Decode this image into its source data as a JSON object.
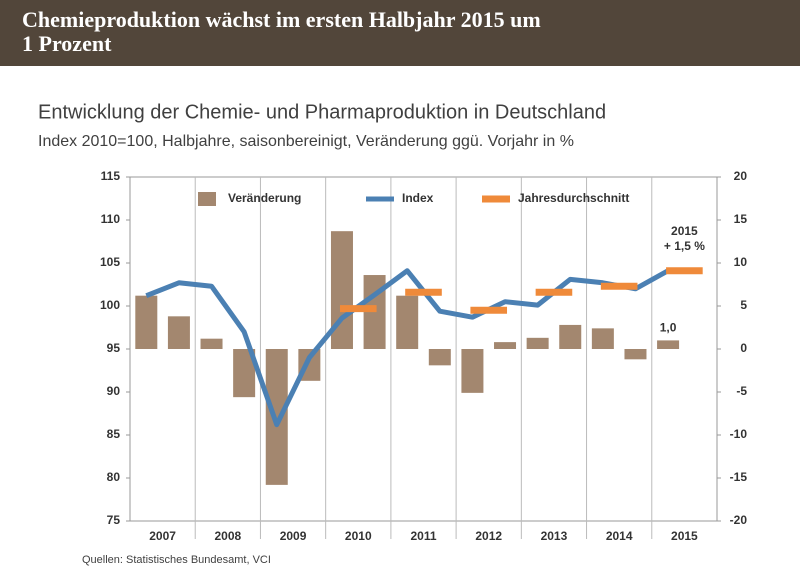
{
  "header": {
    "title_lines": [
      "Chemieproduktion wächst im ersten Halbjahr 2015 um",
      "1 Prozent"
    ]
  },
  "chart_data": {
    "type": "bar-line",
    "title": "Entwicklung der Chemie- und Pharmaproduktion in Deutschland",
    "subtitle": "Index 2010=100, Halbjahre, saisonbereinigt, Veränderung ggü. Vorjahr in %",
    "categories": [
      "2007",
      null,
      "2008",
      null,
      "2009",
      null,
      "2010",
      null,
      "2011",
      null,
      "2012",
      null,
      "2013",
      null,
      "2014",
      null,
      "2015",
      null
    ],
    "series": [
      {
        "name": "Veränderung",
        "type": "bar",
        "axis": "y2",
        "color": "#a3876f",
        "values": [
          6.2,
          3.8,
          1.2,
          -5.6,
          -15.8,
          -3.7,
          13.7,
          8.6,
          6.2,
          -1.9,
          -5.1,
          0.8,
          1.3,
          2.8,
          2.4,
          -1.2,
          1.0,
          null
        ],
        "value_labels": [
          null,
          null,
          null,
          null,
          null,
          null,
          null,
          null,
          null,
          null,
          null,
          null,
          null,
          null,
          null,
          null,
          "1,0",
          null
        ]
      },
      {
        "name": "Index",
        "type": "line",
        "color": "#4b80b3",
        "values": [
          101.2,
          102.7,
          102.3,
          97.0,
          86.2,
          94.0,
          98.6,
          101.3,
          104.1,
          99.4,
          98.7,
          100.5,
          100.1,
          103.1,
          102.7,
          102.0,
          104.1,
          null
        ]
      },
      {
        "name": "Jahresdurchschnitt",
        "type": "segment",
        "color": "#ef8a3a",
        "values": [
          null,
          null,
          null,
          null,
          null,
          null,
          99.7,
          99.7,
          101.6,
          101.6,
          99.5,
          99.5,
          101.6,
          101.6,
          102.3,
          102.3,
          104.1,
          104.1
        ]
      }
    ],
    "ylim": [
      75,
      115
    ],
    "yticks": [
      75,
      80,
      85,
      90,
      95,
      100,
      105,
      110,
      115
    ],
    "y2lim": [
      -20,
      20
    ],
    "y2ticks": [
      -20,
      -15,
      -10,
      -5,
      0,
      5,
      10,
      15,
      20
    ],
    "annotations": [
      {
        "text": [
          "2015",
          "+ 1,5 %"
        ]
      }
    ],
    "legend": "top",
    "source": "Quellen: Statistisches Bundesamt, VCI"
  }
}
